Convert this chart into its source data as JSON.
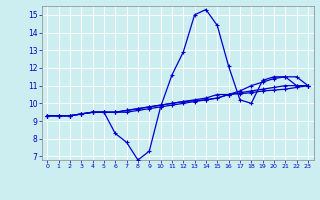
{
  "background_color": "#cceef0",
  "grid_color": "#ffffff",
  "line_color": "#0000cc",
  "xlim": [
    -0.5,
    23.5
  ],
  "ylim": [
    6.8,
    15.5
  ],
  "yticks": [
    7,
    8,
    9,
    10,
    11,
    12,
    13,
    14,
    15
  ],
  "xticks": [
    0,
    1,
    2,
    3,
    4,
    5,
    6,
    7,
    8,
    9,
    10,
    11,
    12,
    13,
    14,
    15,
    16,
    17,
    18,
    19,
    20,
    21,
    22,
    23
  ],
  "series": {
    "main": {
      "x": [
        0,
        1,
        2,
        3,
        4,
        5,
        6,
        7,
        8,
        9,
        10,
        11,
        12,
        13,
        14,
        15,
        16,
        17,
        18,
        19,
        20,
        21,
        22,
        23
      ],
      "y": [
        9.3,
        9.3,
        9.3,
        9.4,
        9.5,
        9.5,
        8.3,
        7.8,
        6.8,
        7.3,
        9.8,
        11.6,
        12.9,
        15.0,
        15.3,
        14.4,
        12.1,
        10.2,
        10.0,
        11.3,
        11.5,
        11.5,
        11.0,
        11.0
      ]
    },
    "line2": {
      "x": [
        0,
        1,
        2,
        3,
        4,
        5,
        6,
        7,
        8,
        9,
        10,
        11,
        12,
        13,
        14,
        15,
        16,
        17,
        18,
        19,
        20,
        21,
        22,
        23
      ],
      "y": [
        9.3,
        9.3,
        9.3,
        9.4,
        9.5,
        9.5,
        9.5,
        9.5,
        9.6,
        9.7,
        9.8,
        9.9,
        10.0,
        10.1,
        10.2,
        10.3,
        10.5,
        10.7,
        11.0,
        11.2,
        11.4,
        11.5,
        11.5,
        11.0
      ]
    },
    "line3": {
      "x": [
        0,
        1,
        2,
        3,
        4,
        5,
        6,
        7,
        8,
        9,
        10,
        11,
        12,
        13,
        14,
        15,
        16,
        17,
        18,
        19,
        20,
        21,
        22,
        23
      ],
      "y": [
        9.3,
        9.3,
        9.3,
        9.4,
        9.5,
        9.5,
        9.5,
        9.6,
        9.7,
        9.8,
        9.9,
        10.0,
        10.1,
        10.2,
        10.3,
        10.5,
        10.5,
        10.6,
        10.7,
        10.8,
        10.9,
        11.0,
        11.0,
        11.0
      ]
    },
    "line4": {
      "x": [
        0,
        1,
        2,
        3,
        4,
        5,
        6,
        7,
        8,
        9,
        10,
        11,
        12,
        13,
        14,
        15,
        16,
        17,
        18,
        19,
        20,
        21,
        22,
        23
      ],
      "y": [
        9.3,
        9.3,
        9.3,
        9.4,
        9.5,
        9.5,
        9.5,
        9.6,
        9.7,
        9.8,
        9.9,
        10.0,
        10.1,
        10.15,
        10.2,
        10.3,
        10.5,
        10.55,
        10.6,
        10.7,
        10.75,
        10.8,
        10.9,
        11.0
      ]
    }
  }
}
